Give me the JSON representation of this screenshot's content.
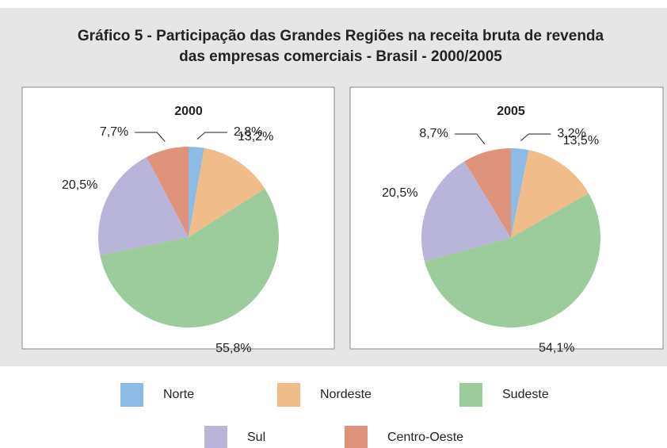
{
  "title": [
    "Gráfico 5 - Participação das Grandes Regiões na receita bruta de revenda",
    "das empresas comerciais - Brasil - 2000/2005"
  ],
  "chart_data": [
    {
      "type": "pie",
      "title": "2000",
      "categories": [
        "Norte",
        "Nordeste",
        "Sudeste",
        "Sul",
        "Centro-Oeste"
      ],
      "values": [
        2.8,
        13.2,
        55.8,
        20.5,
        7.7
      ],
      "value_labels": [
        "2,8%",
        "13,2%",
        "55,8%",
        "20,5%",
        "7,7%"
      ],
      "colors": [
        "#8dbbe5",
        "#f0bd8a",
        "#9ccb9c",
        "#b9b4d9",
        "#df937c"
      ]
    },
    {
      "type": "pie",
      "title": "2005",
      "categories": [
        "Norte",
        "Nordeste",
        "Sudeste",
        "Sul",
        "Centro-Oeste"
      ],
      "values": [
        3.2,
        13.5,
        54.1,
        20.5,
        8.7
      ],
      "value_labels": [
        "3,2%",
        "13,5%",
        "54,1%",
        "20,5%",
        "8,7%"
      ],
      "colors": [
        "#8dbbe5",
        "#f0bd8a",
        "#9ccb9c",
        "#b9b4d9",
        "#df937c"
      ]
    }
  ]
}
